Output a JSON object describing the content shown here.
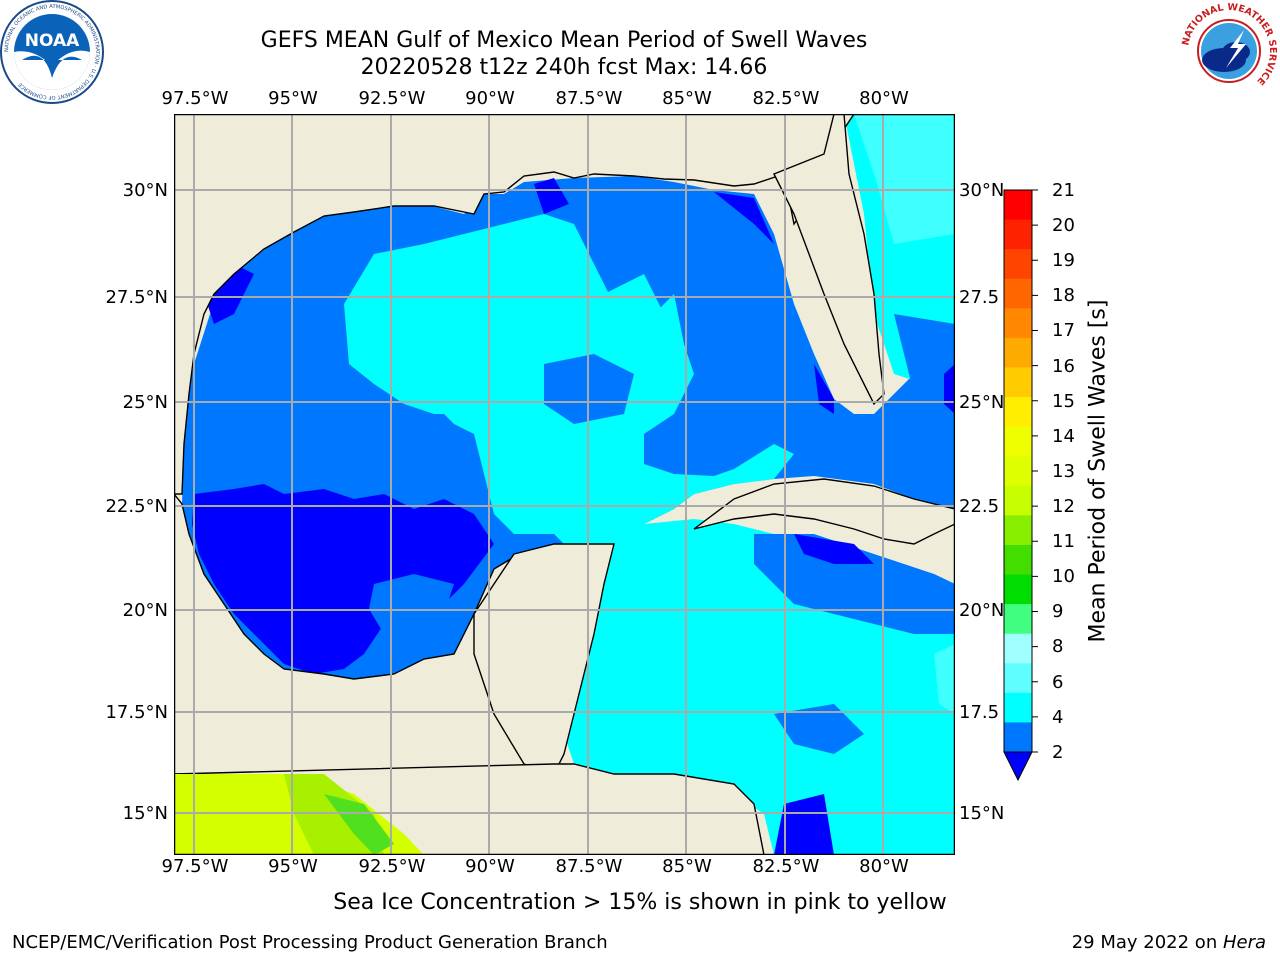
{
  "header": {
    "title_line1": "GEFS MEAN Gulf of Mexico Mean Period of Swell Waves",
    "title_line2": "20220528 t12z 240h fcst   Max: 14.66"
  },
  "logos": {
    "left": "NOAA",
    "left_ring": "NATIONAL OCEANIC AND ATMOSPHERIC ADMINISTRATION · U.S. DEPARTMENT OF COMMERCE",
    "right_ring": "NATIONAL WEATHER SERVICE"
  },
  "map": {
    "lon_labels": [
      "97.5°W",
      "95°W",
      "92.5°W",
      "90°W",
      "87.5°W",
      "85°W",
      "82.5°W",
      "80°W"
    ],
    "lat_labels_left": [
      "30°N",
      "27.5°N",
      "25°N",
      "22.5°N",
      "20°N",
      "17.5°N",
      "15°N"
    ],
    "lat_labels_right": [
      "30°N",
      "27.5",
      "25°N",
      "22.5",
      "20°N",
      "17.5",
      "15°N"
    ],
    "colors": {
      "land": "#efedda",
      "band_2_4": "#0077ff",
      "band_below_2": "#0000ff",
      "band_4_6": "#00ffff",
      "band_6_8": "#40ffff",
      "band_12_14": "#d4ff00",
      "band_13": "#c8ff00",
      "band_10_12": "#50e020",
      "grid": "#aaaaaa"
    }
  },
  "colorbar": {
    "label": "Mean Period of Swell Waves [s]",
    "ticks": [
      "21",
      "20",
      "19",
      "18",
      "17",
      "16",
      "15",
      "14",
      "13",
      "12",
      "11",
      "10",
      "9",
      "8",
      "6",
      "4",
      "2"
    ],
    "colors_top_to_bottom": [
      "#ff0000",
      "#ff2200",
      "#ff4400",
      "#ff6600",
      "#ff8800",
      "#ffaa00",
      "#ffcc00",
      "#ffee00",
      "#f0ff00",
      "#ddff00",
      "#c8ff00",
      "#88ee00",
      "#44dd00",
      "#00dd00",
      "#40ff80",
      "#a0ffff",
      "#60ffff",
      "#00ffff",
      "#0077ff"
    ],
    "arrow_color": "#0000ff"
  },
  "footer": {
    "note": "Sea Ice Concentration > 15% is shown in pink to yellow",
    "left": "NCEP/EMC/Verification Post Processing Product Generation Branch",
    "right_date": "29 May 2022 on ",
    "right_host": "Hera"
  }
}
